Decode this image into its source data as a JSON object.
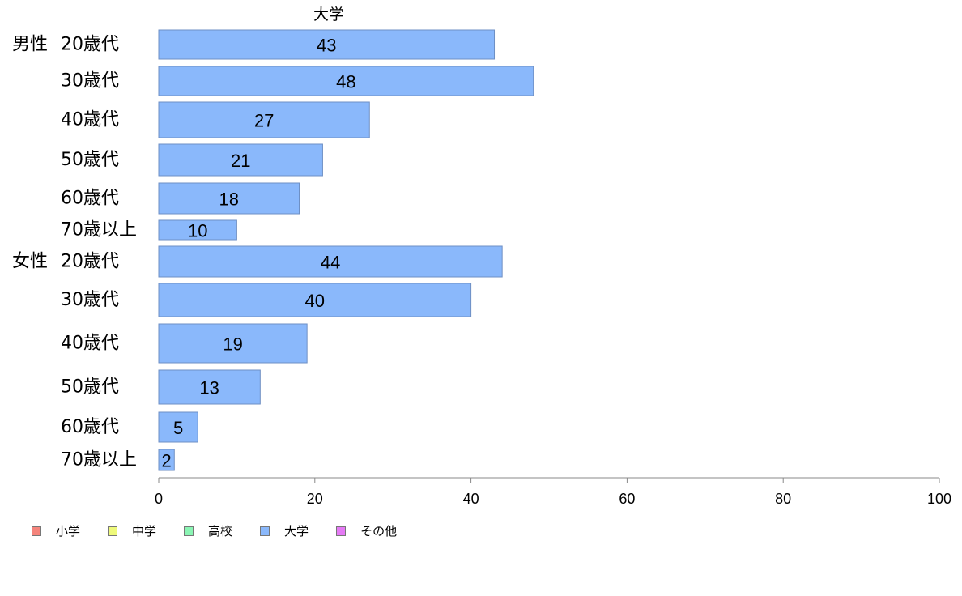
{
  "chart_data": {
    "type": "bar",
    "orientation": "horizontal",
    "title": "大学",
    "groups": [
      "男性",
      "女性"
    ],
    "categories": [
      "20歳代",
      "30歳代",
      "40歳代",
      "50歳代",
      "60歳代",
      "70歳以上"
    ],
    "rows": [
      {
        "group": "男性",
        "category": "20歳代",
        "value": 43
      },
      {
        "group": "男性",
        "category": "30歳代",
        "value": 48
      },
      {
        "group": "男性",
        "category": "40歳代",
        "value": 27
      },
      {
        "group": "男性",
        "category": "50歳代",
        "value": 21
      },
      {
        "group": "男性",
        "category": "60歳代",
        "value": 18
      },
      {
        "group": "男性",
        "category": "70歳以上",
        "value": 10
      },
      {
        "group": "女性",
        "category": "20歳代",
        "value": 44
      },
      {
        "group": "女性",
        "category": "30歳代",
        "value": 40
      },
      {
        "group": "女性",
        "category": "40歳代",
        "value": 19
      },
      {
        "group": "女性",
        "category": "50歳代",
        "value": 13
      },
      {
        "group": "女性",
        "category": "60歳代",
        "value": 5
      },
      {
        "group": "女性",
        "category": "70歳以上",
        "value": 2
      }
    ],
    "xlim": [
      0,
      100
    ],
    "xticks": [
      0,
      20,
      40,
      60,
      80,
      100
    ],
    "grid": false,
    "legend_position": "bottom-left",
    "legend": [
      {
        "label": "小学",
        "color": "#f5847c"
      },
      {
        "label": "中学",
        "color": "#eef97a"
      },
      {
        "label": "高校",
        "color": "#8af5b4"
      },
      {
        "label": "大学",
        "color": "#8ab8fb"
      },
      {
        "label": "その他",
        "color": "#e57af5"
      }
    ],
    "bar_color": "#8ab8fb"
  }
}
